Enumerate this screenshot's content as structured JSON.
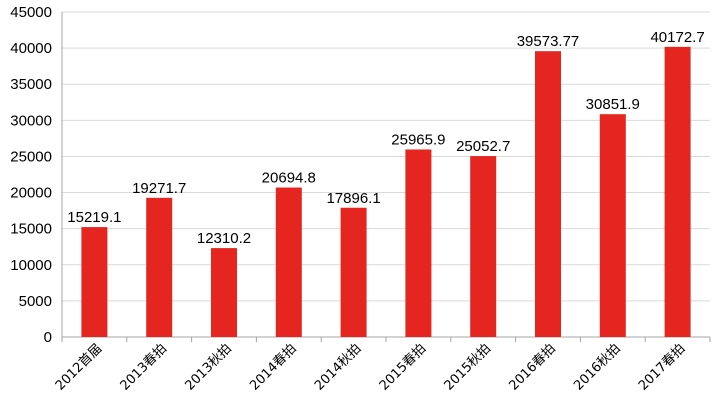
{
  "chart_data": {
    "type": "bar",
    "title": "",
    "xlabel": "",
    "ylabel": "",
    "categories": [
      "2012首届",
      "2013春拍",
      "2013秋拍",
      "2014春拍",
      "2014秋拍",
      "2015春拍",
      "2015秋拍",
      "2016春拍",
      "2016秋拍",
      "2017春拍"
    ],
    "values": [
      15219.1,
      19271.7,
      12310.2,
      20694.8,
      17896.1,
      25965.9,
      25052.7,
      39573.77,
      30851.9,
      40172.7
    ],
    "value_labels": [
      "15219.1",
      "19271.7",
      "12310.2",
      "20694.8",
      "17896.1",
      "25965.9",
      "25052.7",
      "39573.77",
      "30851.9",
      "40172.7"
    ],
    "ylim": [
      0,
      45000
    ],
    "yticks": [
      0,
      5000,
      10000,
      15000,
      20000,
      25000,
      30000,
      35000,
      40000,
      45000
    ],
    "grid": true,
    "legend": "none",
    "colors": {
      "bar": "#e52620",
      "grid": "#d9d9d9",
      "axis": "#a6a6a6"
    }
  }
}
